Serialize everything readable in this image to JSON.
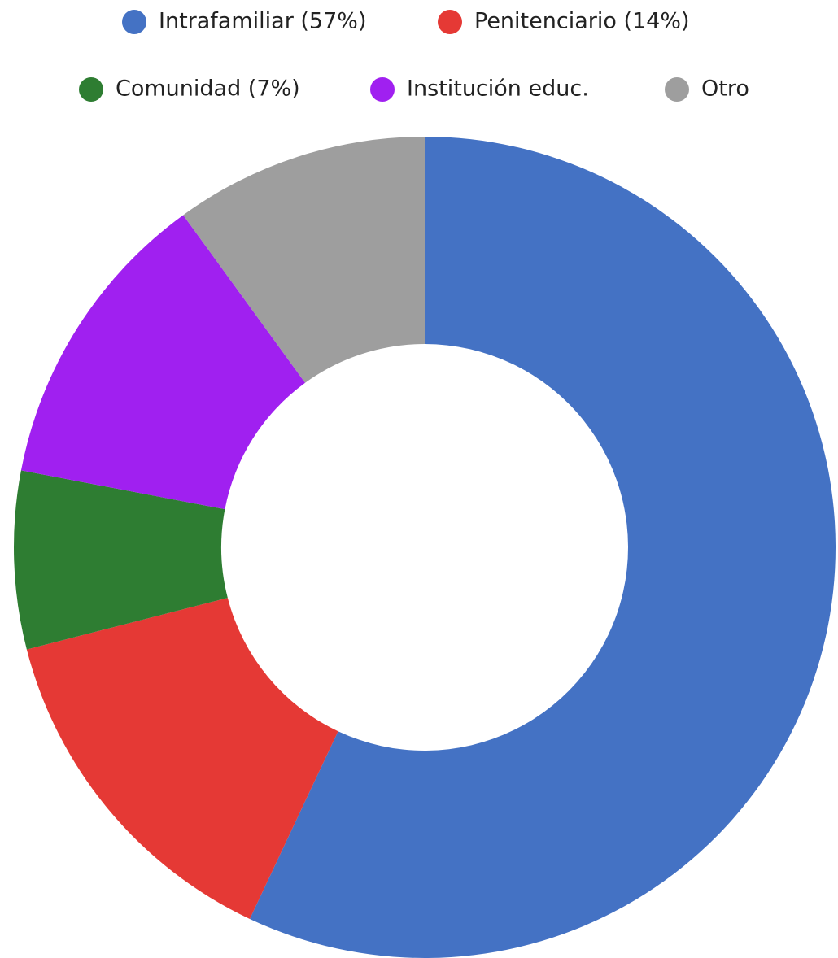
{
  "chart_data": {
    "type": "donut",
    "categories": [
      "Intrafamiliar (57%)",
      "Penitenciario (14%)",
      "Comunidad (7%)",
      "Institución educ.",
      "Otro"
    ],
    "values": [
      57,
      14,
      7,
      12,
      10
    ],
    "colors": [
      "#4472c4",
      "#e53935",
      "#2e7d32",
      "#a020f0",
      "#9e9e9e"
    ],
    "legend": "top"
  }
}
